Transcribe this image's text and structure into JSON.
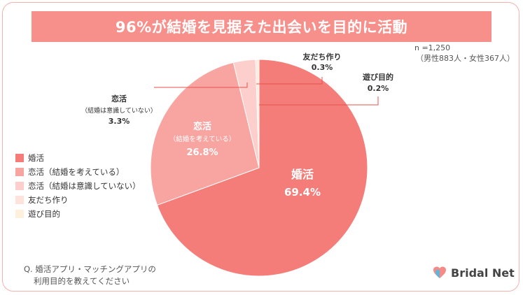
{
  "title": "96%が結婚を見据えた出会いを目的に活動",
  "sample": {
    "line1": "n =1,250",
    "line2": "（男性883人・女性367人）"
  },
  "question": {
    "line1": "Q. 婚活アプリ・マッチングアプリの",
    "line2": "利用目的を教えてください"
  },
  "brand": {
    "name": "Bridal Net"
  },
  "chart_data": {
    "type": "pie",
    "title": "96%が結婚を見据えた出会いを目的に活動",
    "start": "12 o'clock",
    "direction": "clockwise",
    "slices": [
      {
        "label": "婚活",
        "sub": "",
        "value": 69.4,
        "value_label": "69.4%",
        "color": "#f47d79"
      },
      {
        "label": "恋活",
        "sub": "（結婚を考えている）",
        "value": 26.8,
        "value_label": "26.8%",
        "color": "#f8a5a2"
      },
      {
        "label": "恋活",
        "sub": "（結婚は意識していない）",
        "value": 3.3,
        "value_label": "3.3%",
        "color": "#fccfcc"
      },
      {
        "label": "友だち作り",
        "sub": "",
        "value": 0.3,
        "value_label": "0.3%",
        "color": "#fde3dc"
      },
      {
        "label": "遊び目的",
        "sub": "",
        "value": 0.2,
        "value_label": "0.2%",
        "color": "#fdf0dc"
      }
    ],
    "legend": [
      {
        "label": "婚活",
        "color": "#f47d79"
      },
      {
        "label": "恋活（結婚を考えている）",
        "color": "#f8a5a2"
      },
      {
        "label": "恋活（結婚は意識していない）",
        "color": "#fccfcc"
      },
      {
        "label": "友だち作り",
        "color": "#fde3dc"
      },
      {
        "label": "遊び目的",
        "color": "#fdf0dc"
      }
    ]
  }
}
